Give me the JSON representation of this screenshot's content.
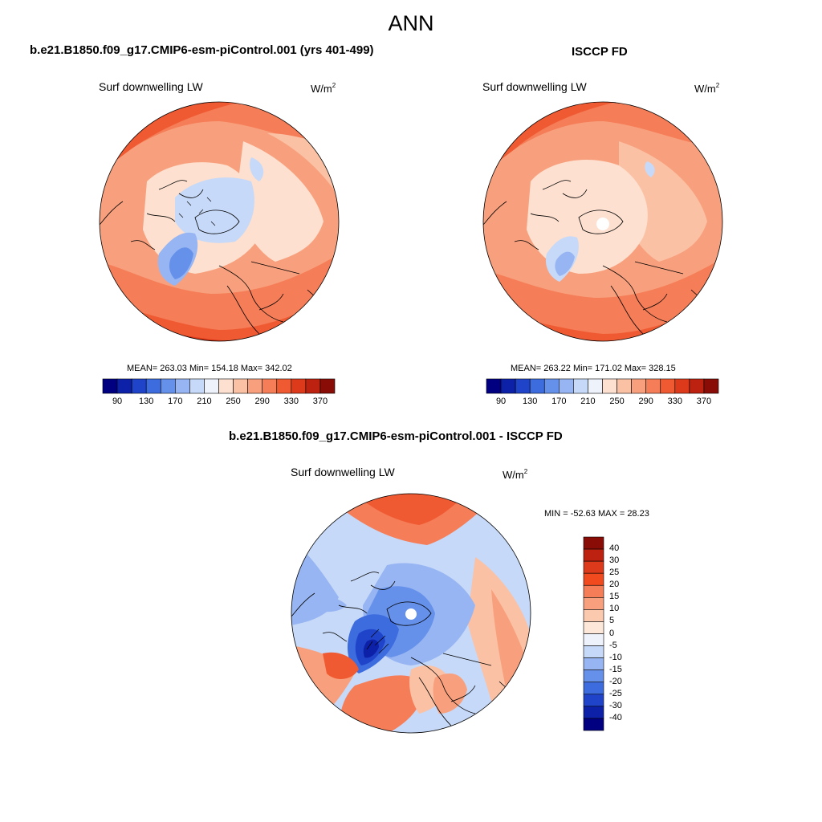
{
  "figure": {
    "title": "ANN"
  },
  "panels": [
    {
      "id": "model",
      "case_title": "b.e21.B1850.f09_g17.CMIP6-esm-piControl.001 (yrs 401-499)",
      "variable": "Surf downwelling LW",
      "units_base": "W/m",
      "units_exp": "2",
      "stats": "MEAN= 263.03  Min= 154.18  Max= 342.02"
    },
    {
      "id": "obs",
      "case_title": "ISCCP FD",
      "variable": "Surf downwelling LW",
      "units_base": "W/m",
      "units_exp": "2",
      "stats": "MEAN= 263.22  Min= 171.02  Max= 328.15"
    },
    {
      "id": "diff",
      "case_title": "b.e21.B1850.f09_g17.CMIP6-esm-piControl.001 - ISCCP FD",
      "variable": "Surf downwelling LW",
      "units_base": "W/m",
      "units_exp": "2",
      "stats": "MIN = -52.63 MAX =  28.23"
    }
  ],
  "colorbar_abs": {
    "colors": [
      "#000080",
      "#0d21a8",
      "#1f44c9",
      "#3d6cdf",
      "#6691eb",
      "#97b5f2",
      "#c6d9f8",
      "#eef3fb",
      "#fde0cf",
      "#fbc1a4",
      "#f8a07d",
      "#f57d57",
      "#ef5a32",
      "#dc3a1a",
      "#bd2210",
      "#8a0c06"
    ],
    "labels": [
      "90",
      "130",
      "170",
      "210",
      "250",
      "290",
      "330",
      "370"
    ]
  },
  "colorbar_diff": {
    "colors": [
      "#8a0c06",
      "#bd2210",
      "#dc3a1a",
      "#f04a1e",
      "#f57d57",
      "#f8a07d",
      "#fbc9ae",
      "#fde7d8",
      "#eef3fb",
      "#c6d9f8",
      "#97b5f2",
      "#6691eb",
      "#3d6cdf",
      "#1f44c9",
      "#0d21a8",
      "#000080"
    ],
    "labels": [
      "40",
      "30",
      "25",
      "20",
      "15",
      "10",
      "5",
      "0",
      "-5",
      "-10",
      "-15",
      "-20",
      "-25",
      "-30",
      "-40"
    ]
  },
  "chart_data": [
    {
      "type": "heatmap",
      "title": "Surf downwelling LW",
      "units": "W/m2",
      "projection": "north polar stereographic",
      "stats": {
        "mean": 263.03,
        "min": 154.18,
        "max": 342.02
      },
      "levels": [
        90,
        110,
        130,
        150,
        170,
        190,
        210,
        230,
        250,
        270,
        290,
        310,
        330,
        350,
        370
      ]
    },
    {
      "type": "heatmap",
      "title": "Surf downwelling LW",
      "units": "W/m2",
      "projection": "north polar stereographic",
      "stats": {
        "mean": 263.22,
        "min": 171.02,
        "max": 328.15
      },
      "levels": [
        90,
        110,
        130,
        150,
        170,
        190,
        210,
        230,
        250,
        270,
        290,
        310,
        330,
        350,
        370
      ]
    },
    {
      "type": "heatmap",
      "title": "Surf downwelling LW",
      "units": "W/m2",
      "projection": "north polar stereographic",
      "stats": {
        "min": -52.63,
        "max": 28.23
      },
      "levels": [
        -40,
        -30,
        -25,
        -20,
        -15,
        -10,
        -5,
        0,
        5,
        10,
        15,
        20,
        25,
        30,
        40
      ]
    }
  ]
}
